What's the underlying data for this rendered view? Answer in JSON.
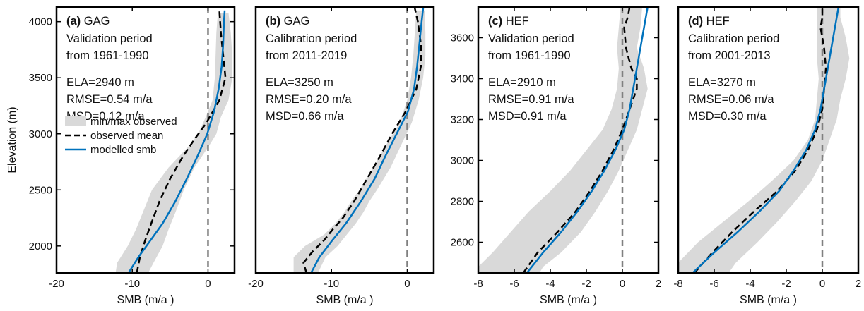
{
  "figure": {
    "legend": {
      "entries": [
        "min/max observed",
        "observed mean",
        "modelled smb"
      ]
    }
  },
  "colors": {
    "band": "#d9d9d9",
    "observed": "#000000",
    "modelled": "#0072bd",
    "zero_line": "#808080"
  },
  "chart_data": [
    {
      "type": "line",
      "panel": "(a)",
      "glacier": "GAG",
      "note_lines": [
        "Validation period",
        "from 1961-1990"
      ],
      "stats": [
        "ELA=2940 m",
        "RMSE=0.54 m/a",
        "MSD=0.12 m/a"
      ],
      "xlabel": "SMB (m/a )",
      "ylabel": "Elevation (m)",
      "xlim": [
        -20,
        3.5
      ],
      "ylim": [
        1760,
        4130
      ],
      "xticks": [
        -20,
        -10,
        0
      ],
      "yticks": [
        2000,
        2500,
        3000,
        3500,
        4000
      ],
      "grid": false,
      "legend_position": "center-left",
      "series": [
        {
          "name": "min/max observed",
          "kind": "band",
          "y": [
            1760,
            1850,
            2000,
            2150,
            2300,
            2500,
            2700,
            2900,
            3000,
            3150,
            3300,
            3500,
            3700,
            3900,
            4080
          ],
          "min": [
            -12.2,
            -12.0,
            -10.6,
            -9.5,
            -8.6,
            -7.4,
            -5.2,
            -2.4,
            -1.3,
            -0.3,
            0.6,
            0.9,
            1.0,
            1.1,
            1.3
          ],
          "max": [
            -7.9,
            -7.2,
            -6.0,
            -5.2,
            -4.3,
            -3.2,
            -1.8,
            0.2,
            1.1,
            1.7,
            2.7,
            3.2,
            3.2,
            3.0,
            2.7
          ]
        },
        {
          "name": "observed mean",
          "kind": "dashed",
          "y": [
            1760,
            1900,
            2050,
            2200,
            2400,
            2600,
            2800,
            2950,
            3100,
            3300,
            3500,
            3700,
            3900,
            4100
          ],
          "x": [
            -9.4,
            -9.0,
            -8.3,
            -7.5,
            -6.4,
            -5.0,
            -3.3,
            -1.8,
            -0.2,
            1.5,
            2.3,
            2.0,
            1.7,
            1.5
          ]
        },
        {
          "name": "modelled smb",
          "kind": "solid",
          "y": [
            1760,
            1900,
            2050,
            2200,
            2400,
            2600,
            2800,
            3000,
            3200,
            3400,
            3600,
            3800,
            4000,
            4100
          ],
          "x": [
            -10.5,
            -9.2,
            -7.6,
            -6.0,
            -4.3,
            -2.8,
            -1.4,
            -0.1,
            0.8,
            1.4,
            1.8,
            2.0,
            2.1,
            2.2
          ]
        }
      ]
    },
    {
      "type": "line",
      "panel": "(b)",
      "glacier": "GAG",
      "note_lines": [
        "Calibration period",
        "from 2011-2019"
      ],
      "stats": [
        "ELA=3250 m",
        "RMSE=0.20 m/a",
        "MSD=0.66 m/a"
      ],
      "xlabel": "SMB (m/a )",
      "ylabel": "",
      "xlim": [
        -20,
        3.5
      ],
      "ylim": [
        1760,
        4130
      ],
      "xticks": [
        -20,
        -10,
        0
      ],
      "yticks": [],
      "grid": false,
      "series": [
        {
          "name": "min/max observed",
          "kind": "band",
          "y": [
            1760,
            1800,
            1900,
            2000,
            2100,
            2200,
            2300,
            2400,
            2500,
            2700,
            2900,
            3100,
            3300,
            3500,
            3700,
            3900,
            4100
          ],
          "min": [
            -15.0,
            -15.0,
            -15.0,
            -13.5,
            -11.0,
            -9.5,
            -8.3,
            -7.4,
            -6.3,
            -4.5,
            -2.8,
            -1.0,
            0.0,
            0.5,
            0.8,
            1.0,
            1.2
          ],
          "max": [
            -11.8,
            -11.5,
            -10.8,
            -9.2,
            -8.0,
            -6.8,
            -5.8,
            -5.0,
            -4.0,
            -2.2,
            -0.8,
            0.6,
            1.5,
            2.1,
            2.4,
            2.4,
            2.3
          ]
        },
        {
          "name": "observed mean",
          "kind": "dashed",
          "y": [
            1760,
            1850,
            1950,
            2050,
            2150,
            2250,
            2400,
            2600,
            2800,
            3000,
            3200,
            3400,
            3600,
            3800,
            4000,
            4120
          ],
          "x": [
            -13.3,
            -13.7,
            -12.5,
            -11.0,
            -9.8,
            -8.5,
            -7.0,
            -5.3,
            -3.6,
            -2.0,
            -0.2,
            1.2,
            1.8,
            1.8,
            1.4,
            1.0
          ]
        },
        {
          "name": "modelled smb",
          "kind": "solid",
          "y": [
            1760,
            1900,
            2050,
            2200,
            2400,
            2600,
            2800,
            3000,
            3200,
            3400,
            3600,
            3800,
            4000,
            4120
          ],
          "x": [
            -12.7,
            -11.6,
            -9.9,
            -8.1,
            -6.1,
            -4.3,
            -2.9,
            -1.4,
            0.1,
            0.9,
            1.3,
            1.6,
            1.9,
            2.1
          ]
        }
      ]
    },
    {
      "type": "line",
      "panel": "(c)",
      "glacier": "HEF",
      "note_lines": [
        "Validation period",
        "from 1961-1990"
      ],
      "stats": [
        "ELA=2910 m",
        "RMSE=0.91 m/a",
        "MSD=0.91 m/a"
      ],
      "xlabel": "SMB (m/a )",
      "ylabel": "",
      "xlim": [
        -8,
        2
      ],
      "ylim": [
        2450,
        3750
      ],
      "xticks": [
        -8,
        -6,
        -4,
        -2,
        0,
        2
      ],
      "yticks": [
        2600,
        2800,
        3000,
        3200,
        3400,
        3600
      ],
      "grid": false,
      "series": [
        {
          "name": "min/max observed",
          "kind": "band",
          "y": [
            2450,
            2480,
            2550,
            2650,
            2750,
            2850,
            2950,
            3050,
            3150,
            3250,
            3350,
            3450,
            3550,
            3650,
            3750
          ],
          "min": [
            -8.0,
            -8.0,
            -7.2,
            -6.2,
            -5.2,
            -4.0,
            -2.9,
            -2.0,
            -1.1,
            -0.6,
            -0.3,
            -0.2,
            -0.3,
            -0.2,
            -0.1
          ],
          "max": [
            -4.6,
            -4.4,
            -3.4,
            -2.3,
            -1.5,
            -0.8,
            -0.2,
            0.3,
            0.8,
            1.1,
            1.4,
            1.2,
            0.8,
            1.0,
            1.1
          ]
        },
        {
          "name": "observed mean",
          "kind": "dashed",
          "y": [
            2450,
            2550,
            2650,
            2750,
            2850,
            2950,
            3050,
            3150,
            3250,
            3350,
            3400,
            3450,
            3550,
            3650,
            3700,
            3750
          ],
          "x": [
            -5.5,
            -4.7,
            -3.6,
            -2.6,
            -1.8,
            -1.1,
            -0.5,
            0.0,
            0.4,
            0.8,
            0.8,
            0.5,
            0.2,
            0.1,
            0.3,
            0.4
          ]
        },
        {
          "name": "modelled smb",
          "kind": "solid",
          "y": [
            2450,
            2550,
            2650,
            2750,
            2850,
            2950,
            3050,
            3150,
            3250,
            3350,
            3450,
            3550,
            3650,
            3750
          ],
          "x": [
            -5.3,
            -4.4,
            -3.4,
            -2.5,
            -1.7,
            -1.0,
            -0.4,
            0.1,
            0.4,
            0.6,
            0.8,
            1.0,
            1.2,
            1.4
          ]
        }
      ]
    },
    {
      "type": "line",
      "panel": "(d)",
      "glacier": "HEF",
      "note_lines": [
        "Calibration period",
        "from 2001-2013"
      ],
      "stats": [
        "ELA=3270 m",
        "RMSE=0.06 m/a",
        "MSD=0.30 m/a"
      ],
      "xlabel": "SMB (m/a )",
      "ylabel": "",
      "xlim": [
        -8,
        2
      ],
      "ylim": [
        2450,
        3750
      ],
      "xticks": [
        -8,
        -6,
        -4,
        -2,
        0,
        2
      ],
      "yticks": [],
      "grid": false,
      "series": [
        {
          "name": "min/max observed",
          "kind": "band",
          "y": [
            2450,
            2500,
            2600,
            2700,
            2800,
            2900,
            3000,
            3100,
            3200,
            3300,
            3400,
            3500,
            3600,
            3700,
            3750
          ],
          "min": [
            -8.0,
            -8.0,
            -6.9,
            -5.5,
            -4.1,
            -2.8,
            -1.6,
            -0.8,
            -0.4,
            -0.3,
            -0.2,
            -0.3,
            -0.3,
            -0.3,
            -0.3
          ],
          "max": [
            -5.2,
            -4.8,
            -3.6,
            -2.5,
            -1.5,
            -0.6,
            0.0,
            0.4,
            0.8,
            1.0,
            1.3,
            1.5,
            1.3,
            1.0,
            1.0
          ]
        },
        {
          "name": "observed mean",
          "kind": "dashed",
          "y": [
            2450,
            2550,
            2650,
            2750,
            2850,
            2950,
            3050,
            3150,
            3250,
            3350,
            3450,
            3550,
            3650,
            3700,
            3750
          ],
          "x": [
            -7.1,
            -6.1,
            -5.0,
            -3.8,
            -2.5,
            -1.5,
            -0.8,
            -0.3,
            0.0,
            0.1,
            0.2,
            0.1,
            -0.1,
            0.0,
            0.0
          ]
        },
        {
          "name": "modelled smb",
          "kind": "solid",
          "y": [
            2450,
            2550,
            2650,
            2750,
            2850,
            2950,
            3050,
            3150,
            3250,
            3350,
            3450,
            3550,
            3650,
            3750
          ],
          "x": [
            -7.2,
            -6.0,
            -4.7,
            -3.5,
            -2.4,
            -1.6,
            -0.9,
            -0.4,
            -0.1,
            0.1,
            0.3,
            0.5,
            0.7,
            0.9
          ]
        }
      ]
    }
  ]
}
